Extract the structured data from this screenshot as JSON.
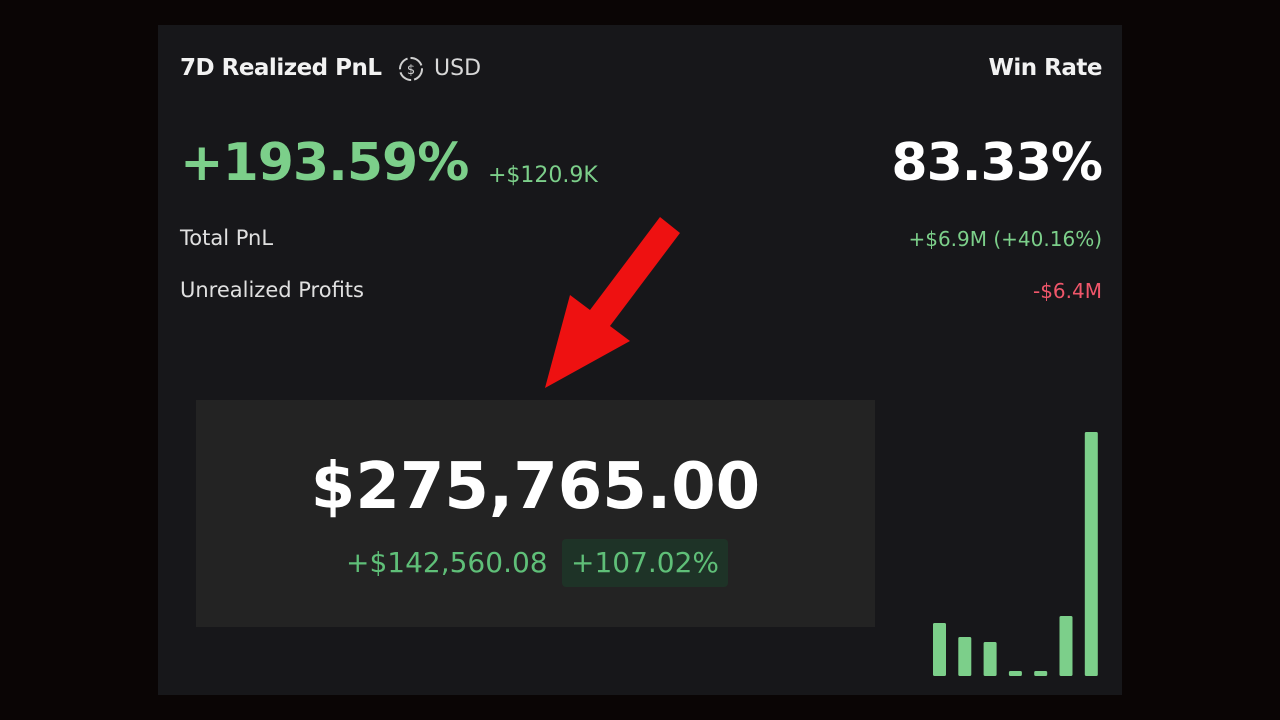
{
  "header": {
    "title": "7D Realized PnL",
    "currency": "USD",
    "win_rate_label": "Win Rate"
  },
  "pnl": {
    "percent": "+193.59%",
    "amount": "+$120.9K"
  },
  "win_rate": "83.33%",
  "rows": [
    {
      "label": "Total PnL",
      "value": "+$6.9M (+40.16%)"
    },
    {
      "label": "Unrealized Profits",
      "value": "-$6.4M"
    }
  ],
  "overlay": {
    "balance": "$275,765.00",
    "change": "+$142,560.08",
    "change_pct": "+107.02%"
  },
  "chart_data": {
    "type": "bar",
    "values": [
      53,
      39,
      34,
      5,
      5,
      60,
      244
    ],
    "color": "#7ccf8a"
  }
}
